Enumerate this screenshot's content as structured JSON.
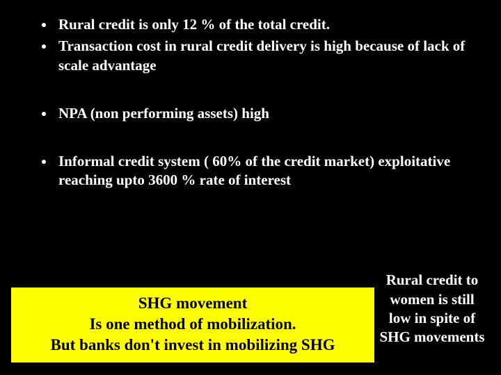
{
  "background_color": "#000000",
  "text_color": "#ffffff",
  "highlight_background": "#ffff00",
  "highlight_text_color": "#000000",
  "font_family": "Times New Roman",
  "bullets": [
    {
      "text": "Rural credit is only 12 % of the total credit.",
      "gap_after": false
    },
    {
      "text": "Transaction cost in rural credit delivery is high because of lack of scale advantage",
      "gap_after": true
    },
    {
      "text": "NPA (non performing assets) high",
      "gap_after": true
    },
    {
      "text": "Informal credit system  ( 60% of the  credit market) exploitative reaching upto 3600 % rate of interest",
      "gap_after": false
    }
  ],
  "highlight_box": {
    "line1": "SHG movement",
    "line2": "Is one method of mobilization.",
    "line3": "But banks don't invest in mobilizing SHG"
  },
  "side_note": "Rural credit to women  is still low in spite of SHG movements"
}
